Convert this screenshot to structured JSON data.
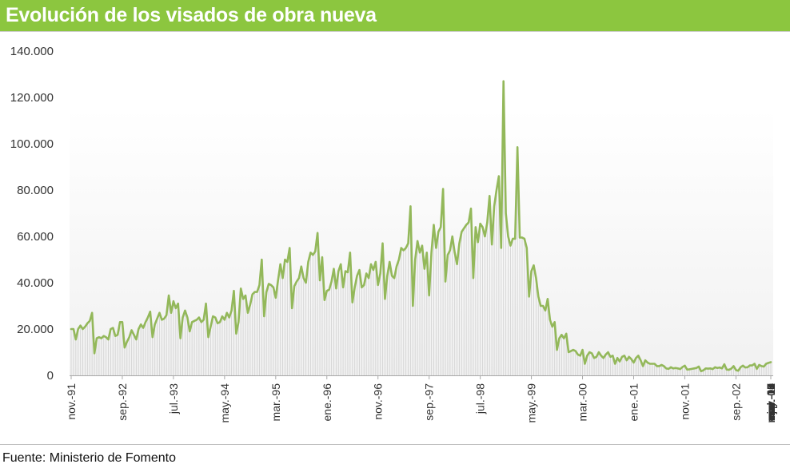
{
  "title": "Evolución de los visados de obra nueva",
  "source": "Fuente: Ministerio de Fomento",
  "colors": {
    "accent": "#8cc63f",
    "line": "#93b85a",
    "fill_lines": "#d6d6d6",
    "text": "#333333"
  },
  "chart_data": {
    "type": "line",
    "title": "Evolución de los visados de obra nueva",
    "xlabel": "",
    "ylabel": "",
    "ylim": [
      0,
      140000
    ],
    "yticks": [
      0,
      20000,
      40000,
      60000,
      80000,
      100000,
      120000,
      140000
    ],
    "ytick_labels": [
      "0",
      "20.000",
      "40.000",
      "60.000",
      "80.000",
      "100.000",
      "120.000",
      "140.000"
    ],
    "x_start": "nov.-91",
    "x_end": "ene.-16",
    "xtick_labels": [
      "nov.-91",
      "sep.-92",
      "jul.-93",
      "may.-94",
      "mar.-95",
      "ene.-96",
      "nov.-96",
      "sep.-97",
      "jul.-98",
      "may.-99",
      "mar.-00",
      "ene.-01",
      "nov.-01",
      "sep.-02",
      "jul.-03",
      "may.-04",
      "mar.-05",
      "ene.-06",
      "nov.-06",
      "sep.-07",
      "jul.-08",
      "may.-09",
      "mar.-10",
      "ene.-11",
      "nov.-11",
      "sep.-12",
      "jul.-13",
      "may.-14",
      "mar.-15",
      "ene.-16"
    ],
    "grid": false,
    "legend": "none",
    "series": [
      {
        "values": [
          20000,
          20000,
          15500,
          20000,
          21500,
          20000,
          21000,
          22500,
          23500,
          27000,
          9500,
          16000,
          16500,
          16000,
          17000,
          16500,
          15500,
          20000,
          20500,
          17000,
          17500,
          23000,
          23000,
          12000,
          14500,
          16500,
          19500,
          17500,
          15500,
          20000,
          22000,
          20500,
          23000,
          25000,
          27500,
          16500,
          22000,
          24500,
          27000,
          24000,
          24500,
          26000,
          34500,
          27000,
          32000,
          29000,
          31000,
          16000,
          25000,
          28000,
          25000,
          19000,
          23000,
          23500,
          24000,
          25000,
          23000,
          24000,
          31000,
          16500,
          21000,
          25500,
          25000,
          22500,
          23000,
          25500,
          24000,
          27000,
          25000,
          28000,
          36500,
          18000,
          23000,
          37500,
          33000,
          34500,
          27000,
          30500,
          35000,
          36000,
          36000,
          39000,
          50000,
          25500,
          36000,
          39500,
          39000,
          38000,
          33500,
          41000,
          48000,
          42000,
          50000,
          49000,
          55000,
          29000,
          38500,
          40500,
          42000,
          47000,
          42000,
          40000,
          49000,
          53000,
          52000,
          53500,
          61500,
          41000,
          51000,
          32500,
          36500,
          37000,
          40500,
          46000,
          37500,
          45000,
          48000,
          38000,
          45000,
          44500,
          53000,
          31500,
          38000,
          43000,
          45500,
          38000,
          39000,
          44000,
          42000,
          48000,
          45500,
          49000,
          39000,
          44000,
          57000,
          33000,
          43000,
          49000,
          43000,
          42000,
          47000,
          50000,
          55000,
          54000,
          55000,
          57000,
          73000,
          30000,
          50000,
          58000,
          53000,
          56000,
          46000,
          53000,
          34500,
          53000,
          65000,
          55000,
          62000,
          64000,
          80500,
          40500,
          52000,
          54000,
          60000,
          53000,
          48000,
          57000,
          62000,
          63500,
          65000,
          66000,
          72000,
          42000,
          64000,
          57500,
          65500,
          64000,
          60000,
          66000,
          77500,
          56500,
          73000,
          80000,
          86000,
          55000,
          127000,
          70000,
          60000,
          56000,
          59000,
          59000,
          98500,
          59500,
          59500,
          59000,
          55000,
          34000,
          45000,
          47500,
          42000,
          34000,
          30000,
          30000,
          28000,
          33000,
          24000,
          21000,
          23000,
          11000,
          16000,
          17500,
          16000,
          18000,
          10000,
          10500,
          11000,
          10500,
          9000,
          8500,
          11000,
          5000,
          8500,
          10000,
          9500,
          7500,
          8000,
          10000,
          8500,
          7500,
          9000,
          10000,
          8000,
          8500,
          5000,
          7500,
          6000,
          8000,
          8500,
          6500,
          8000,
          7000,
          5500,
          7500,
          8500,
          6500,
          4000,
          6500,
          5500,
          5000,
          5000,
          5000,
          4000,
          4000,
          4500,
          4000,
          3000,
          2800,
          3500,
          3000,
          3200,
          3000,
          2700,
          3600,
          4200,
          2500,
          2600,
          2800,
          3000,
          3200,
          3800,
          1800,
          2200,
          3000,
          2900,
          3000,
          2700,
          3500,
          3200,
          3400,
          3000,
          4800,
          2500,
          2400,
          2900,
          4000,
          2300,
          2000,
          3500,
          4200,
          3400,
          3500,
          4300,
          4300,
          5000,
          2800,
          4500,
          4000,
          3800,
          5000,
          5400,
          5700
        ]
      }
    ]
  }
}
